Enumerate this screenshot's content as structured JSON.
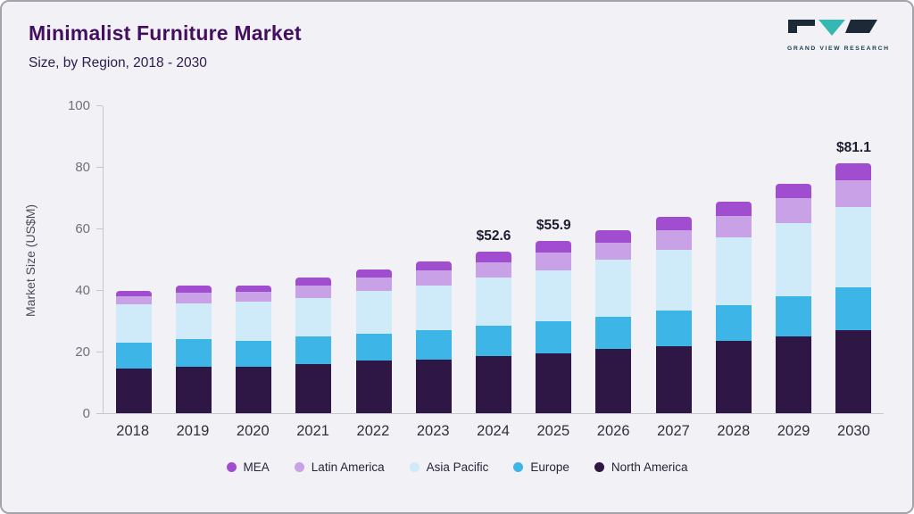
{
  "header": {
    "title": "Minimalist Furniture Market",
    "subtitle": "Size, by Region, 2018 - 2030"
  },
  "logo": {
    "text": "GRAND VIEW RESEARCH"
  },
  "chart_data": {
    "type": "bar",
    "stacked": true,
    "title": "Minimalist Furniture Market Size, by Region, 2018 - 2030",
    "xlabel": "",
    "ylabel": "Market Size (US$M)",
    "ylim": [
      0,
      100
    ],
    "yticks": [
      0,
      20,
      40,
      60,
      80,
      100
    ],
    "grid": false,
    "legend_position": "bottom",
    "categories": [
      "2018",
      "2019",
      "2020",
      "2021",
      "2022",
      "2023",
      "2024",
      "2025",
      "2026",
      "2027",
      "2028",
      "2029",
      "2030"
    ],
    "series": [
      {
        "name": "MEA",
        "color": "#a04ecf",
        "values": [
          1.7,
          2.5,
          2.2,
          2.5,
          2.8,
          2.9,
          3.6,
          3.6,
          3.8,
          4.3,
          4.8,
          4.8,
          5.3
        ]
      },
      {
        "name": "Latin America",
        "color": "#c9a1e6",
        "values": [
          2.5,
          3.2,
          3.1,
          4.0,
          4.2,
          5.0,
          5.0,
          5.8,
          5.7,
          6.5,
          7.0,
          8.0,
          8.8
        ]
      },
      {
        "name": "Asia Pacific",
        "color": "#cfeaf8",
        "values": [
          12.5,
          11.8,
          12.7,
          12.7,
          14.0,
          14.5,
          15.7,
          16.7,
          18.6,
          19.8,
          21.8,
          23.8,
          26.2
        ]
      },
      {
        "name": "Europe",
        "color": "#3db5e6",
        "values": [
          8.5,
          9.0,
          8.5,
          8.8,
          8.8,
          9.5,
          9.8,
          10.3,
          10.4,
          11.4,
          11.7,
          13.0,
          13.8
        ]
      },
      {
        "name": "North America",
        "color": "#2e1745",
        "values": [
          14.5,
          15.0,
          15.0,
          16.0,
          17.0,
          17.5,
          18.5,
          19.5,
          20.8,
          21.8,
          23.5,
          25.0,
          27.0
        ]
      }
    ],
    "annotations": {
      "2024": "$52.6",
      "2025": "$55.9",
      "2030": "$81.1"
    }
  }
}
